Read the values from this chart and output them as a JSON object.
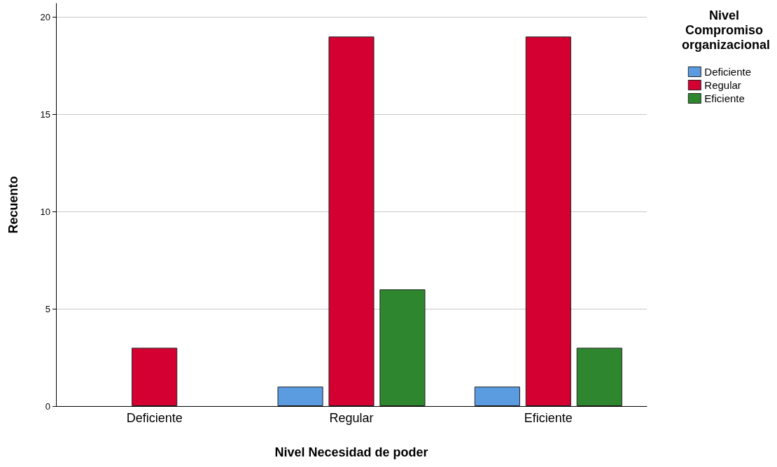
{
  "chart_data": {
    "type": "bar",
    "xlabel": "Nivel Necesidad de poder",
    "ylabel": "Recuento",
    "legend_title": "Nivel Compromiso organizacional",
    "categories": [
      "Deficiente",
      "Regular",
      "Eficiente"
    ],
    "series": [
      {
        "name": "Deficiente",
        "color": "#5b9be0",
        "values": [
          0,
          1,
          1
        ]
      },
      {
        "name": "Regular",
        "color": "#d50032",
        "values": [
          3,
          19,
          19
        ]
      },
      {
        "name": "Eficiente",
        "color": "#2e862e",
        "values": [
          0,
          6,
          3
        ]
      }
    ],
    "ylim": [
      0,
      20.7
    ],
    "yticks": [
      0,
      5,
      10,
      15,
      20
    ],
    "grid": "y",
    "legend": "top right"
  }
}
